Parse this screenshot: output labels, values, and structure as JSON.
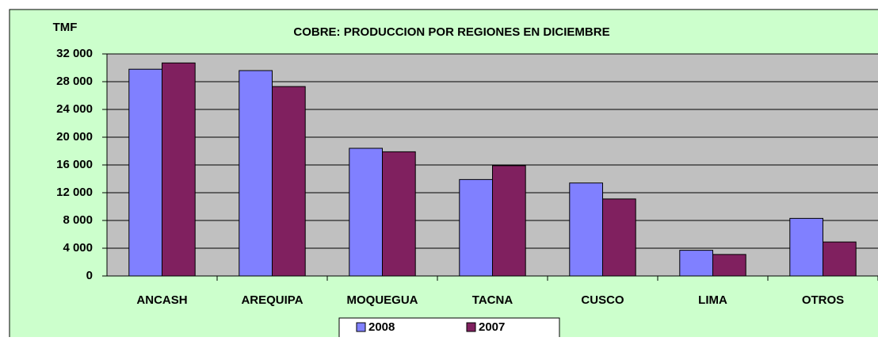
{
  "chart_data": {
    "type": "bar",
    "title": "COBRE: PRODUCCION POR REGIONES EN DICIEMBRE",
    "y_label": "TMF",
    "categories": [
      "ANCASH",
      "AREQUIPA",
      "MOQUEGUA",
      "TACNA",
      "CUSCO",
      "LIMA",
      "OTROS"
    ],
    "series": [
      {
        "name": "2008",
        "color": "#8080ff",
        "values": [
          29800,
          29600,
          18400,
          13900,
          13400,
          3700,
          8300
        ]
      },
      {
        "name": "2007",
        "color": "#80205f",
        "values": [
          30700,
          27300,
          17900,
          15900,
          11100,
          3100,
          4900
        ]
      }
    ],
    "ylim": [
      0,
      32000
    ],
    "yticks": [
      0,
      {
        "value": 4000,
        "label": "4 000"
      },
      {
        "value": 8000,
        "label": "8 000"
      },
      {
        "value": 12000,
        "label": "12 000"
      },
      {
        "value": 16000,
        "label": "16 000"
      },
      {
        "value": 20000,
        "label": "20 000"
      },
      {
        "value": 24000,
        "label": "24 000"
      },
      {
        "value": 28000,
        "label": "28 000"
      },
      {
        "value": 32000,
        "label": "32 000"
      }
    ],
    "grid": true,
    "legend": "bottom"
  }
}
